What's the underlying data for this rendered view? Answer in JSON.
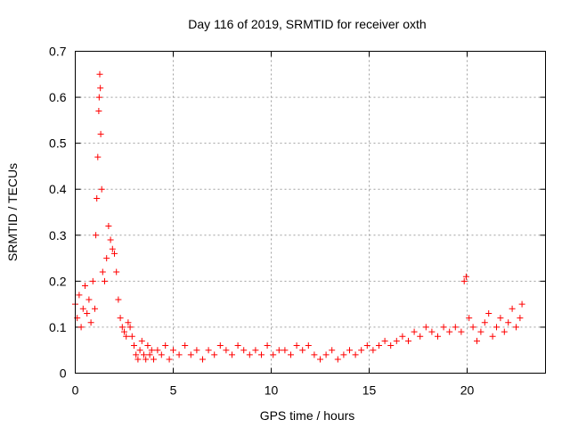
{
  "chart_data": {
    "type": "scatter",
    "title": "Day 116 of 2019, SRMTID for receiver oxth",
    "xlabel": "GPS time / hours",
    "ylabel": "SRMTID / TECUs",
    "xlim": [
      0,
      24
    ],
    "ylim": [
      0,
      0.7
    ],
    "xticks": [
      0,
      5,
      10,
      15,
      20
    ],
    "xtick_labels": [
      "0",
      "5",
      "10",
      "15",
      "20"
    ],
    "yticks": [
      0,
      0.1,
      0.2,
      0.3,
      0.4,
      0.5,
      0.6,
      0.7
    ],
    "ytick_labels": [
      "0",
      "0.1",
      "0.2",
      "0.3",
      "0.4",
      "0.5",
      "0.6",
      "0.7"
    ],
    "grid": true,
    "marker": "+",
    "color": "#ff0000",
    "series": [
      {
        "name": "SRMTID",
        "x": [
          0.0,
          0.1,
          0.2,
          0.3,
          0.4,
          0.5,
          0.6,
          0.7,
          0.8,
          0.9,
          1.0,
          1.05,
          1.1,
          1.15,
          1.2,
          1.22,
          1.25,
          1.28,
          1.3,
          1.35,
          1.4,
          1.5,
          1.6,
          1.7,
          1.8,
          1.9,
          2.0,
          2.1,
          2.2,
          2.3,
          2.4,
          2.5,
          2.6,
          2.7,
          2.8,
          2.9,
          3.0,
          3.1,
          3.2,
          3.3,
          3.4,
          3.5,
          3.6,
          3.7,
          3.8,
          3.9,
          4.0,
          4.2,
          4.4,
          4.6,
          4.8,
          5.0,
          5.3,
          5.6,
          5.9,
          6.2,
          6.5,
          6.8,
          7.1,
          7.4,
          7.7,
          8.0,
          8.3,
          8.6,
          8.9,
          9.2,
          9.5,
          9.8,
          10.1,
          10.4,
          10.7,
          11.0,
          11.3,
          11.6,
          11.9,
          12.2,
          12.5,
          12.8,
          13.1,
          13.4,
          13.7,
          14.0,
          14.3,
          14.6,
          14.9,
          15.2,
          15.5,
          15.8,
          16.1,
          16.4,
          16.7,
          17.0,
          17.3,
          17.6,
          17.9,
          18.2,
          18.5,
          18.8,
          19.1,
          19.4,
          19.7,
          19.85,
          19.95,
          20.1,
          20.3,
          20.5,
          20.7,
          20.9,
          21.1,
          21.3,
          21.5,
          21.7,
          21.9,
          22.1,
          22.3,
          22.5,
          22.7,
          22.8
        ],
        "y": [
          0.15,
          0.12,
          0.17,
          0.1,
          0.14,
          0.19,
          0.13,
          0.16,
          0.11,
          0.2,
          0.14,
          0.3,
          0.38,
          0.47,
          0.57,
          0.6,
          0.65,
          0.62,
          0.52,
          0.4,
          0.22,
          0.2,
          0.25,
          0.32,
          0.29,
          0.27,
          0.26,
          0.22,
          0.16,
          0.12,
          0.1,
          0.09,
          0.08,
          0.11,
          0.1,
          0.08,
          0.06,
          0.04,
          0.03,
          0.05,
          0.07,
          0.04,
          0.03,
          0.06,
          0.04,
          0.05,
          0.03,
          0.05,
          0.04,
          0.06,
          0.03,
          0.05,
          0.04,
          0.06,
          0.04,
          0.05,
          0.03,
          0.05,
          0.04,
          0.06,
          0.05,
          0.04,
          0.06,
          0.05,
          0.04,
          0.05,
          0.04,
          0.06,
          0.04,
          0.05,
          0.05,
          0.04,
          0.06,
          0.05,
          0.06,
          0.04,
          0.03,
          0.04,
          0.05,
          0.03,
          0.04,
          0.05,
          0.04,
          0.05,
          0.06,
          0.05,
          0.06,
          0.07,
          0.06,
          0.07,
          0.08,
          0.07,
          0.09,
          0.08,
          0.1,
          0.09,
          0.08,
          0.1,
          0.09,
          0.1,
          0.09,
          0.2,
          0.21,
          0.12,
          0.1,
          0.07,
          0.09,
          0.11,
          0.13,
          0.08,
          0.1,
          0.12,
          0.09,
          0.11,
          0.14,
          0.1,
          0.12,
          0.15
        ]
      }
    ]
  }
}
